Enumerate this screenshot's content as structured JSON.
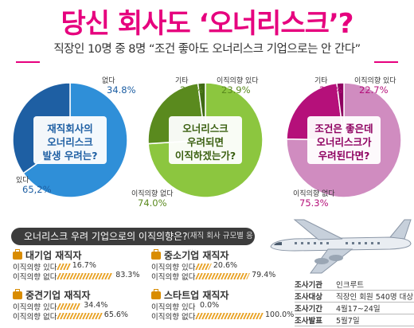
{
  "title": "당신 회사도 ‘오너리스크’?",
  "subtitle": "직장인 10명 중 8명 “조건 좋아도 오너리스크 기업으로는 안 간다”",
  "chart_data": [
    {
      "type": "pie",
      "center_text": [
        "재직회사의",
        "오너리스크",
        "발생 우려는?"
      ],
      "slices": [
        {
          "label": "있다",
          "value": 65.2,
          "value_label": "65,2%",
          "color": "#2f8fd8"
        },
        {
          "label": "없다",
          "value": 34.8,
          "value_label": "34.8%",
          "color": "#1e5fa3"
        }
      ]
    },
    {
      "type": "pie",
      "center_text": [
        "오너리스크",
        "우려되면",
        "이직하겠는가?"
      ],
      "slices": [
        {
          "label": "이직의향 없다",
          "value": 74.0,
          "value_label": "74.0%",
          "color": "#8cc63f"
        },
        {
          "label": "이직의향 있다",
          "value": 23.9,
          "value_label": "23.9%",
          "color": "#5a8a1e"
        },
        {
          "label": "기타",
          "value": 2.1,
          "value_label": "2.1%",
          "color": "#3f6b14"
        }
      ]
    },
    {
      "type": "pie",
      "center_text": [
        "조건은 좋은데",
        "오너리스크가",
        "우려된다면?"
      ],
      "slices": [
        {
          "label": "이직의향 없다",
          "value": 75.3,
          "value_label": "75.3%",
          "color": "#d08cc0"
        },
        {
          "label": "이직의향 있다",
          "value": 22.7,
          "value_label": "22.7%",
          "color": "#b5107a"
        },
        {
          "label": "기타",
          "value": 2.0,
          "value_label": "2.0%",
          "color": "#8e0060"
        }
      ]
    },
    {
      "type": "bar",
      "title": "오너리스크 우려 기업으로의 이직의향은?",
      "note": "(재직 회사 규모별 응답)",
      "row_labels": [
        "이직의향 있다",
        "이직의향 없다"
      ],
      "groups": [
        {
          "name": "대기업 재직자",
          "values": [
            16.7,
            83.3
          ],
          "value_labels": [
            "16.7%",
            "83.3%"
          ]
        },
        {
          "name": "중소기업 재직자",
          "values": [
            20.6,
            79.4
          ],
          "value_labels": [
            "20.6%",
            "79.4%"
          ]
        },
        {
          "name": "중견기업 재직자",
          "values": [
            34.4,
            65.6
          ],
          "value_labels": [
            "34.4%",
            "65.6%"
          ]
        },
        {
          "name": "스타트업 재직자",
          "values": [
            0.0,
            100.0
          ],
          "value_labels": [
            "0.0%",
            "100.0%"
          ]
        }
      ]
    }
  ],
  "survey_info": [
    {
      "key": "조사기관",
      "value": "인크루트"
    },
    {
      "key": "조사대상",
      "value": "직장인 회원 540명 대상"
    },
    {
      "key": "조사기간",
      "value": "4월17~24일"
    },
    {
      "key": "조사발표",
      "value": "5월7일"
    }
  ],
  "colors": {
    "title": "#e6007e",
    "bar": "#e8a020"
  },
  "icons": [
    "airplane-icon",
    "briefcase-icon"
  ]
}
